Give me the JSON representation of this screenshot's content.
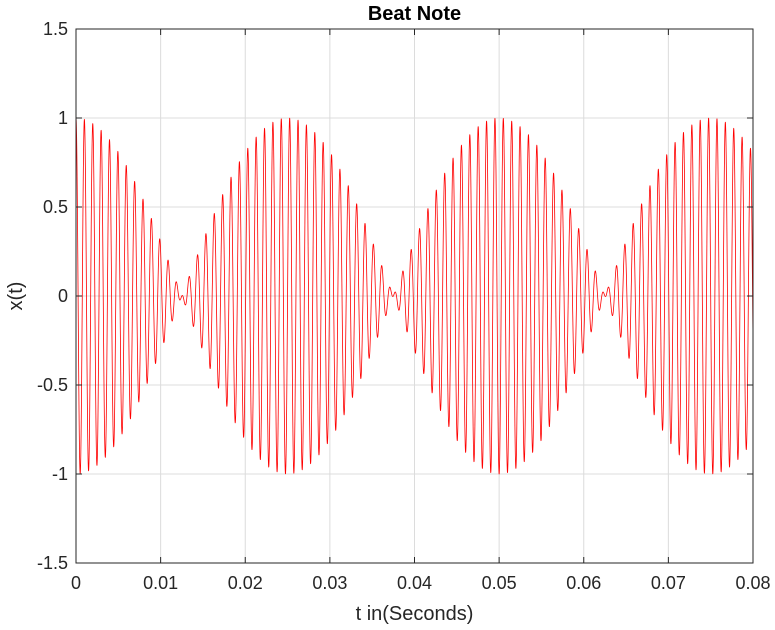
{
  "chart_data": {
    "type": "line",
    "title": "Beat Note",
    "xlabel": "t in(Seconds)",
    "ylabel": "x(t)",
    "xlim": [
      0,
      0.08
    ],
    "ylim": [
      -1.5,
      1.5
    ],
    "x_ticks": [
      0,
      0.01,
      0.02,
      0.03,
      0.04,
      0.05,
      0.06,
      0.07,
      0.08
    ],
    "x_tick_labels": [
      "0",
      "0.01",
      "0.02",
      "0.03",
      "0.04",
      "0.05",
      "0.06",
      "0.07",
      "0.08"
    ],
    "y_ticks": [
      -1.5,
      -1,
      -0.5,
      0,
      0.5,
      1,
      1.5
    ],
    "y_tick_labels": [
      "-1.5",
      "-1",
      "-0.5",
      "0",
      "0.5",
      "1",
      "1.5"
    ],
    "grid": true,
    "series": [
      {
        "formula": "x(t) = cos(2*pi*1010*t) * cos(2*pi*20*t)",
        "carrier_frequency_hz": 1010,
        "envelope_frequency_hz": 20,
        "amplitude": 1,
        "t_start": 0,
        "t_end": 0.08,
        "color": "#ff0000"
      }
    ]
  }
}
